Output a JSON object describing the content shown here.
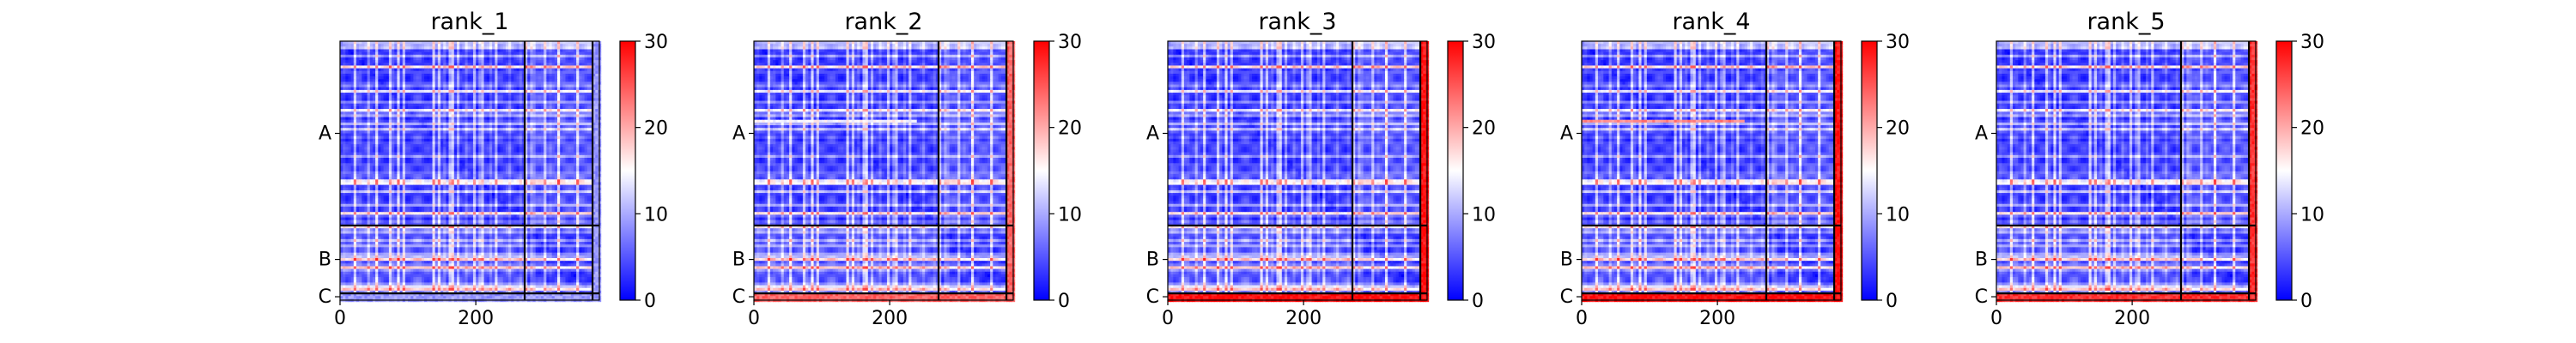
{
  "chart_data": {
    "type": "heatmap",
    "description": "Predicted aligned error (PAE) matrices for 5 ranked models; chains A, B, C separated by black lines",
    "colormap": "bwr",
    "color_range": [
      0,
      30
    ],
    "colorbar_ticks": [
      "0",
      "10",
      "20",
      "30"
    ],
    "x_ticks": [
      "0",
      "200"
    ],
    "x_tick_values": [
      0,
      200
    ],
    "chain_labels": [
      "A",
      "B",
      "C"
    ],
    "chain_boundaries": [
      0,
      272,
      372,
      382
    ],
    "n_residues": 382,
    "panels": [
      {
        "title": "rank_1",
        "chainC_error": 9,
        "hot_row": null,
        "hot_row_value": 0
      },
      {
        "title": "rank_2",
        "chainC_error": 24,
        "hot_row": 113,
        "hot_row_value": 15
      },
      {
        "title": "rank_3",
        "chainC_error": 29,
        "hot_row": null,
        "hot_row_value": 0
      },
      {
        "title": "rank_4",
        "chainC_error": 29,
        "hot_row": 113,
        "hot_row_value": 22
      },
      {
        "title": "rank_5",
        "chainC_error": 27,
        "hot_row": null,
        "hot_row_value": 0
      }
    ]
  }
}
